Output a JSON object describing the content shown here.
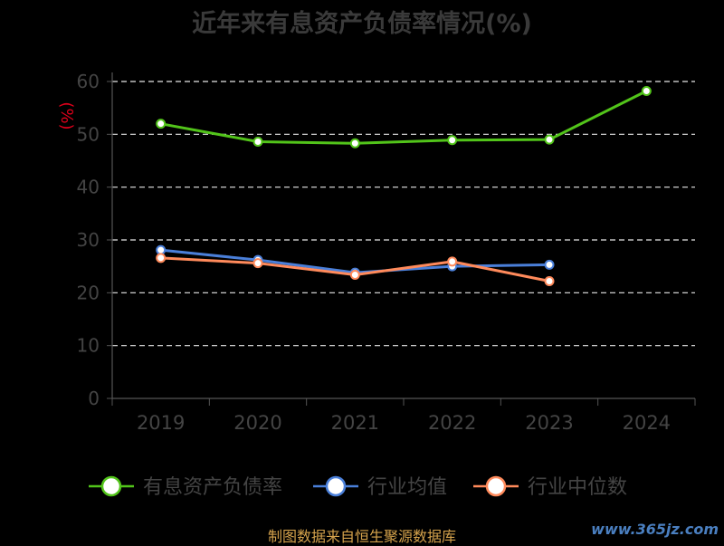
{
  "chart_data": {
    "type": "line",
    "title": "近年来有息资产负债率情况(%)",
    "ylabel": "(%)",
    "categories": [
      "2019",
      "2020",
      "2021",
      "2022",
      "2023",
      "2024"
    ],
    "ylim": [
      0,
      60
    ],
    "yticks": [
      0,
      10,
      20,
      30,
      40,
      50,
      60
    ],
    "grid": true,
    "legend_position": "bottom",
    "series": [
      {
        "name": "有息资产负债率",
        "color": "#52c41a",
        "values": [
          52.0,
          48.6,
          48.3,
          48.9,
          49.0,
          58.2
        ]
      },
      {
        "name": "行业均值",
        "color": "#4a7fd9",
        "values": [
          28.1,
          26.2,
          23.8,
          25.0,
          25.3,
          null
        ]
      },
      {
        "name": "行业中位数",
        "color": "#ff8a5b",
        "values": [
          26.6,
          25.6,
          23.4,
          25.9,
          22.2,
          null
        ]
      }
    ]
  },
  "footer": "制图数据来自恒生聚源数据库",
  "watermark": "www.365jz.com"
}
